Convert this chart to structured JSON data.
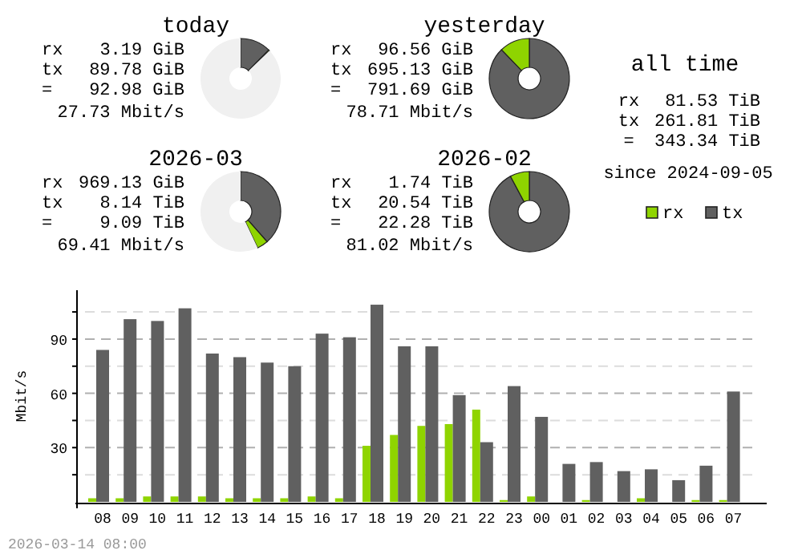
{
  "chart_data": [
    {
      "type": "donut",
      "title": "today",
      "categories": [
        null,
        null,
        null
      ],
      "values": [
        12.4,
        0.4,
        87.2
      ],
      "colors": [
        "#606060",
        "#8fd400",
        "#f0f0f0"
      ],
      "annotations": [
        "rx",
        "3.19 GiB",
        "tx",
        "89.78 GiB",
        "=",
        "92.98 GiB",
        "27.73 Mbit/s"
      ]
    },
    {
      "type": "donut",
      "title": "yesterday",
      "categories": [
        null,
        null
      ],
      "values": [
        87.8,
        12.2
      ],
      "colors": [
        "#606060",
        "#8fd400"
      ],
      "annotations": [
        "rx",
        "96.56 GiB",
        "tx",
        "695.13 GiB",
        "=",
        "791.69 GiB",
        "78.71 Mbit/s"
      ]
    },
    {
      "type": "donut",
      "title": "2026-03",
      "categories": [
        null,
        null,
        null
      ],
      "values": [
        38.5,
        4.5,
        57
      ],
      "colors": [
        "#606060",
        "#8fd400",
        "#f0f0f0"
      ],
      "annotations": [
        "rx",
        "969.13 GiB",
        "tx",
        "8.14 TiB",
        "=",
        "9.09 TiB",
        "69.41 Mbit/s"
      ]
    },
    {
      "type": "donut",
      "title": "2026-02",
      "categories": [
        null,
        null
      ],
      "values": [
        92.2,
        7.8
      ],
      "colors": [
        "#606060",
        "#8fd400"
      ],
      "annotations": [
        "rx",
        "1.74 TiB",
        "tx",
        "20.54 TiB",
        "=",
        "22.28 TiB",
        "81.02 Mbit/s"
      ]
    },
    {
      "type": "other",
      "title": "all time",
      "annotations": [
        "rx",
        "81.53 TiB",
        "tx",
        "261.81 TiB",
        "=",
        "343.34 TiB",
        "since 2024-09-05"
      ]
    },
    {
      "type": "bar",
      "ylabel": "Mbit/s",
      "categories": [
        "08",
        "09",
        "10",
        "11",
        "12",
        "13",
        "14",
        "15",
        "16",
        "17",
        "18",
        "19",
        "20",
        "21",
        "22",
        "23",
        "00",
        "01",
        "02",
        "03",
        "04",
        "05",
        "06",
        "07"
      ],
      "series": [
        {
          "name": "rx",
          "color": "#8fd400",
          "values": [
            2,
            2,
            3,
            3,
            3,
            2,
            2,
            2,
            3,
            2,
            31,
            37,
            42,
            43,
            51,
            1,
            3,
            0,
            1,
            0,
            2,
            0,
            1,
            1
          ]
        },
        {
          "name": "tx",
          "color": "#606060",
          "values": [
            84,
            101,
            100,
            107,
            82,
            80,
            77,
            75,
            93,
            91,
            109,
            86,
            86,
            59,
            33,
            64,
            47,
            21,
            22,
            17,
            18,
            12,
            20,
            61
          ]
        }
      ],
      "ylim": [
        0,
        117
      ],
      "yticks": [
        {
          "value": 15,
          "label": null
        },
        30,
        {
          "value": 45,
          "label": null
        },
        60,
        {
          "value": 75,
          "label": null
        },
        90,
        {
          "value": 105,
          "label": null
        }
      ],
      "grid": "y",
      "legend": "top right",
      "annotations": [
        "2026-03-14 08:00"
      ]
    }
  ]
}
